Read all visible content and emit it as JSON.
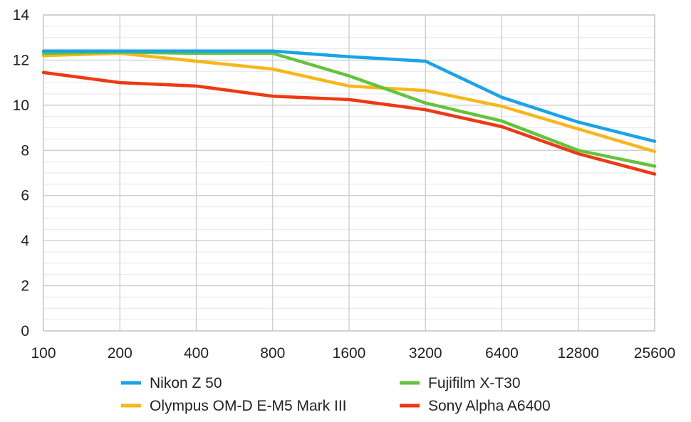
{
  "chart_data": {
    "type": "line",
    "title": "",
    "xlabel": "",
    "ylabel": "",
    "categories": [
      "100",
      "200",
      "400",
      "800",
      "1600",
      "3200",
      "6400",
      "12800",
      "25600"
    ],
    "ylim": [
      0,
      14
    ],
    "yticks": [
      "0",
      "2",
      "4",
      "6",
      "8",
      "10",
      "12",
      "14"
    ],
    "grid": true,
    "legend_position": "bottom",
    "series": [
      {
        "name": "Nikon Z 50",
        "color": "#1aa3e8",
        "values": [
          12.4,
          12.4,
          12.4,
          12.4,
          12.15,
          11.95,
          10.35,
          9.25,
          8.4
        ]
      },
      {
        "name": "Olympus OM-D E-M5 Mark III",
        "color": "#f7b71b",
        "values": [
          12.2,
          12.3,
          11.95,
          11.6,
          10.85,
          10.65,
          9.95,
          8.95,
          7.95
        ]
      },
      {
        "name": "Fujifilm X-T30",
        "color": "#62c43c",
        "values": [
          12.3,
          12.35,
          12.3,
          12.3,
          11.3,
          10.1,
          9.3,
          8.0,
          7.3
        ]
      },
      {
        "name": "Sony Alpha A6400",
        "color": "#ec3a14",
        "values": [
          11.45,
          11.0,
          10.85,
          10.4,
          10.25,
          9.8,
          9.05,
          7.85,
          6.95
        ]
      }
    ]
  }
}
